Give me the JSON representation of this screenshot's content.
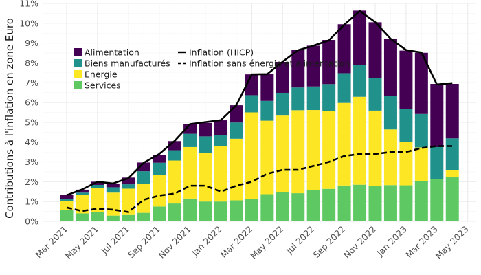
{
  "chart_data": {
    "type": "bar",
    "stacked": true,
    "ylabel": "Contributions à l'inflation en zone Euro",
    "y_unit": "%",
    "ylim": [
      0,
      11
    ],
    "y_ticks": [
      "0%",
      "1%",
      "2%",
      "3%",
      "4%",
      "5%",
      "6%",
      "7%",
      "8%",
      "9%",
      "10%",
      "11%"
    ],
    "x_tick_labels": [
      "Mar 2021",
      "May 2021",
      "Jul 2021",
      "Sep 2021",
      "Nov 2021",
      "Jan 2022",
      "Mar 2022",
      "May 2022",
      "Jul 2022",
      "Sep 2022",
      "Nov 2022",
      "Jan 2023",
      "Mar 2023",
      "May 2023"
    ],
    "grid": true,
    "legend_position": "top-left",
    "categories": [
      "2021-03",
      "2021-04",
      "2021-05",
      "2021-06",
      "2021-07",
      "2021-08",
      "2021-09",
      "2021-10",
      "2021-11",
      "2021-12",
      "2022-01",
      "2022-02",
      "2022-03",
      "2022-04",
      "2022-05",
      "2022-06",
      "2022-07",
      "2022-08",
      "2022-09",
      "2022-10",
      "2022-11",
      "2022-12",
      "2023-01",
      "2023-02",
      "2023-03",
      "2023-04"
    ],
    "bar_series": [
      {
        "name": "Services",
        "color": "#5ec962",
        "values": [
          0.57,
          0.4,
          0.47,
          0.29,
          0.32,
          0.43,
          0.75,
          0.9,
          1.15,
          1.0,
          1.0,
          1.06,
          1.13,
          1.37,
          1.48,
          1.42,
          1.59,
          1.64,
          1.81,
          1.85,
          1.77,
          1.83,
          1.82,
          2.02,
          2.12,
          2.22
        ]
      },
      {
        "name": "Energie",
        "color": "#fde725",
        "values": [
          0.45,
          0.93,
          1.2,
          1.16,
          1.33,
          1.46,
          1.61,
          2.17,
          2.6,
          2.45,
          2.8,
          3.11,
          4.37,
          3.71,
          3.86,
          4.19,
          4.03,
          3.92,
          4.17,
          4.44,
          3.82,
          2.81,
          2.2,
          1.71,
          0.0,
          0.35
        ]
      },
      {
        "name": "Biens manufacturés",
        "color": "#21918c",
        "values": [
          0.12,
          0.12,
          0.17,
          0.27,
          0.22,
          0.64,
          0.6,
          0.52,
          0.67,
          0.84,
          0.56,
          0.82,
          0.87,
          1.0,
          1.15,
          1.15,
          1.19,
          1.37,
          1.5,
          1.6,
          1.64,
          1.71,
          1.66,
          1.69,
          1.63,
          1.62
        ]
      },
      {
        "name": "Alimentation",
        "color": "#440154",
        "values": [
          0.18,
          0.15,
          0.16,
          0.18,
          0.34,
          0.44,
          0.39,
          0.46,
          0.48,
          0.68,
          0.74,
          0.87,
          1.05,
          1.38,
          1.56,
          1.91,
          2.06,
          2.23,
          2.47,
          2.75,
          2.82,
          2.87,
          2.94,
          3.09,
          3.19,
          2.75
        ]
      }
    ],
    "line_series": [
      {
        "name": "Inflation (HICP)",
        "style": "solid",
        "color": "#000000",
        "values": [
          1.32,
          1.61,
          2.0,
          1.91,
          2.18,
          2.96,
          3.4,
          4.06,
          4.91,
          5.01,
          5.11,
          5.86,
          7.42,
          7.43,
          8.06,
          8.64,
          8.87,
          9.14,
          9.93,
          10.62,
          10.06,
          9.22,
          8.65,
          8.52,
          6.91,
          6.98
        ]
      },
      {
        "name": "Inflation sans énergie et alimentation",
        "style": "dashed",
        "color": "#000000",
        "values": [
          0.7,
          0.52,
          0.64,
          0.59,
          0.47,
          1.09,
          1.3,
          1.4,
          1.8,
          1.8,
          1.5,
          1.8,
          2.0,
          2.4,
          2.6,
          2.6,
          2.8,
          3.0,
          3.3,
          3.4,
          3.4,
          3.5,
          3.5,
          3.7,
          3.8,
          3.8
        ]
      }
    ],
    "legend": {
      "col1": [
        "Alimentation",
        "Biens manufacturés",
        "Energie",
        "Services"
      ],
      "col2": [
        "Inflation (HICP)",
        "Inflation sans énergie et alimentation"
      ]
    }
  }
}
